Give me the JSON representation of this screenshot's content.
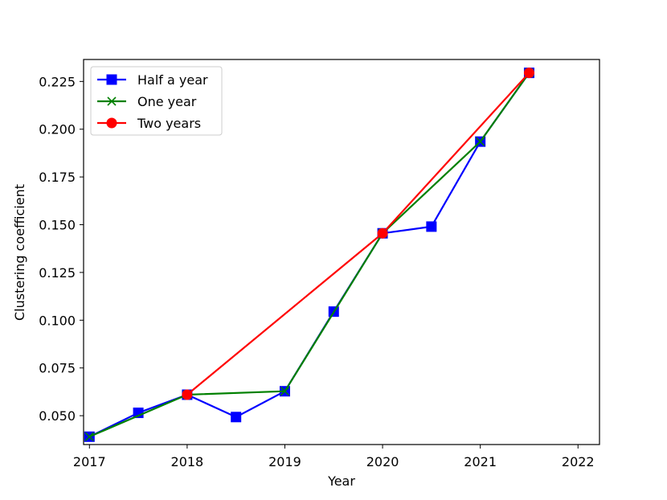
{
  "chart_data": {
    "type": "line",
    "title": "",
    "xlabel": "Year",
    "ylabel": "Clustering coefficient",
    "xlim": [
      2016.94,
      2022.22
    ],
    "ylim": [
      0.0349,
      0.2365
    ],
    "x_ticks": [
      2017,
      2018,
      2019,
      2020,
      2021,
      2022
    ],
    "x_tick_labels": [
      "2017",
      "2018",
      "2019",
      "2020",
      "2021",
      "2022"
    ],
    "y_ticks": [
      0.05,
      0.075,
      0.1,
      0.125,
      0.15,
      0.175,
      0.2,
      0.225
    ],
    "y_tick_labels": [
      "0.050",
      "0.075",
      "0.100",
      "0.125",
      "0.150",
      "0.175",
      "0.200",
      "0.225"
    ],
    "grid": false,
    "legend_position": "top-left",
    "series": [
      {
        "name": "Half a year",
        "color": "#0000ff",
        "marker": "square",
        "x": [
          2017,
          2017.5,
          2018,
          2018.5,
          2019,
          2019.5,
          2020,
          2020.5,
          2021,
          2021.5
        ],
        "y": [
          0.039,
          0.0515,
          0.061,
          0.0493,
          0.0628,
          0.1045,
          0.1455,
          0.149,
          0.1935,
          0.2295
        ]
      },
      {
        "name": "One year",
        "color": "#008000",
        "marker": "x",
        "x": [
          2017,
          2018,
          2019,
          2020,
          2021,
          2021.5
        ],
        "y": [
          0.039,
          0.061,
          0.0628,
          0.1455,
          0.1935,
          0.2295
        ]
      },
      {
        "name": "Two years",
        "color": "#ff0000",
        "marker": "circle",
        "x": [
          2018,
          2020,
          2021.5
        ],
        "y": [
          0.061,
          0.1455,
          0.2295
        ]
      }
    ]
  }
}
